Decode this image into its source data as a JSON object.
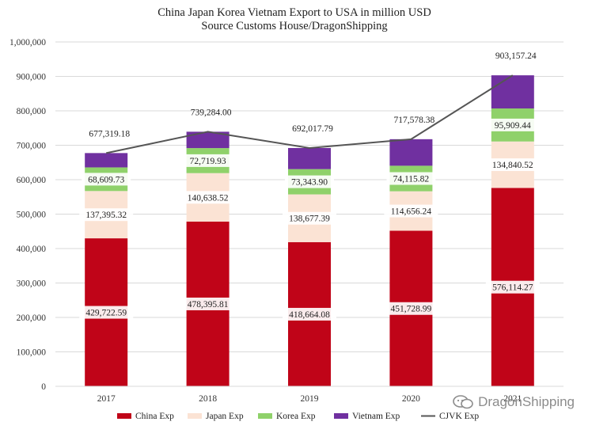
{
  "chart_data": {
    "type": "bar",
    "stacked": true,
    "title": "China Japan Korea Vietnam Export to USA in million USD",
    "subtitle": "Source Customs House/DragonShipping",
    "categories": [
      "2017",
      "2018",
      "2019",
      "2020",
      "2021"
    ],
    "ylim": [
      0,
      1000000
    ],
    "yticks": [
      "0",
      "100,000",
      "200,000",
      "300,000",
      "400,000",
      "500,000",
      "600,000",
      "700,000",
      "800,000",
      "900,000",
      "1,000,000"
    ],
    "legend_position": "bottom",
    "series": [
      {
        "name": "China Exp",
        "color": "#c00418",
        "values": [
          429722.59,
          478395.81,
          418664.08,
          451728.99,
          576114.27
        ],
        "labels": [
          "429,722.59",
          "478,395.81",
          "418,664.08",
          "451,728.99",
          "576,114.27"
        ]
      },
      {
        "name": "Japan Exp",
        "color": "#fbe3d4",
        "values": [
          137395.32,
          140638.52,
          138677.39,
          114656.24,
          134840.52
        ],
        "labels": [
          "137,395.32",
          "140,638.52",
          "138,677.39",
          "114,656.24",
          "134,840.52"
        ]
      },
      {
        "name": "Korea Exp",
        "color": "#8fd16a",
        "values": [
          68609.73,
          72719.93,
          73343.9,
          74115.82,
          95909.44
        ],
        "labels": [
          "68,609.73",
          "72,719.93",
          "73,343.90",
          "74,115.82",
          "95,909.44"
        ]
      },
      {
        "name": "Vietnam Exp",
        "color": "#7030a0",
        "values": [
          41591.54,
          47529.74,
          61332.42,
          77077.33,
          96292.99
        ]
      }
    ],
    "line": {
      "name": "CJVK Exp",
      "color": "#555555",
      "values": [
        677319.18,
        739284.0,
        692017.79,
        717578.38,
        903157.24
      ],
      "labels": [
        "677,319.18",
        "739,284.00",
        "692,017.79",
        "717,578.38",
        "903,157.24"
      ]
    }
  },
  "watermark": {
    "text": "DragonShipping"
  }
}
